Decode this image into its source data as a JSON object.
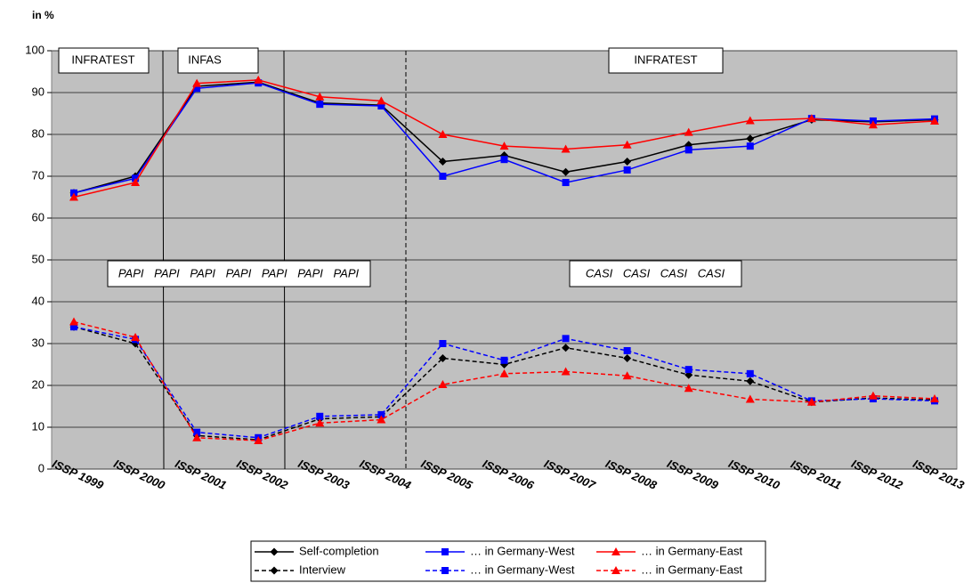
{
  "chart_data": {
    "type": "line",
    "y_label": "in %",
    "categories": [
      "ISSP 1999",
      "ISSP 2000",
      "ISSP 2001",
      "ISSP 2002",
      "ISSP 2003",
      "ISSP 2004",
      "ISSP 2005",
      "ISSP 2006",
      "ISSP 2007",
      "ISSP 2008",
      "ISSP 2009",
      "ISSP 2010",
      "ISSP 2011",
      "ISSP 2012",
      "ISSP 2013"
    ],
    "ylim": [
      0,
      100
    ],
    "yticks": [
      0,
      10,
      20,
      30,
      40,
      50,
      60,
      70,
      80,
      90,
      100
    ],
    "grid": true,
    "legend": "bottom",
    "annotations": [
      "INFRATEST",
      "INFAS",
      "INFRATEST",
      "PAPI PAPI PAPI PAPI PAPI PAPI PAPI",
      "CASI CASI CASI CASI"
    ],
    "series": [
      {
        "name": "Self-completion",
        "color": "#000000",
        "marker": "diamond",
        "dashed": false,
        "values": [
          66,
          70,
          91.5,
          92.5,
          87.5,
          87,
          73.5,
          75,
          71,
          73.5,
          77.5,
          79,
          83.5,
          83,
          83.5
        ]
      },
      {
        "name": "… in Germany-West",
        "color": "#0000ff",
        "marker": "square",
        "dashed": false,
        "values": [
          66,
          69.5,
          91,
          92.3,
          87.2,
          86.8,
          70,
          74,
          68.5,
          71.5,
          76.3,
          77.2,
          83.8,
          83.2,
          83.7
        ]
      },
      {
        "name": "… in Germany-East",
        "color": "#ff0000",
        "marker": "triangle",
        "dashed": false,
        "values": [
          65,
          68.5,
          92.2,
          93,
          89,
          88,
          80,
          77.2,
          76.5,
          77.5,
          80.5,
          83.3,
          83.8,
          82.3,
          83.2
        ]
      },
      {
        "name": "Interview",
        "color": "#000000",
        "marker": "diamond",
        "dashed": true,
        "values": [
          34,
          30,
          8,
          7,
          12,
          12.5,
          26.5,
          25,
          29,
          26.5,
          22.5,
          21,
          16,
          17,
          16.5
        ]
      },
      {
        "name": "… in Germany-West",
        "color": "#0000ff",
        "marker": "square",
        "dashed": true,
        "values": [
          34,
          31,
          8.8,
          7.5,
          12.6,
          13,
          30,
          26,
          31.2,
          28.3,
          23.8,
          22.8,
          16.3,
          16.8,
          16.3
        ]
      },
      {
        "name": "… in Germany-East",
        "color": "#ff0000",
        "marker": "triangle",
        "dashed": true,
        "values": [
          35.2,
          31.5,
          7.5,
          6.8,
          11,
          11.8,
          20.2,
          22.8,
          23.3,
          22.3,
          19.3,
          16.7,
          16,
          17.5,
          16.8
        ]
      }
    ]
  }
}
